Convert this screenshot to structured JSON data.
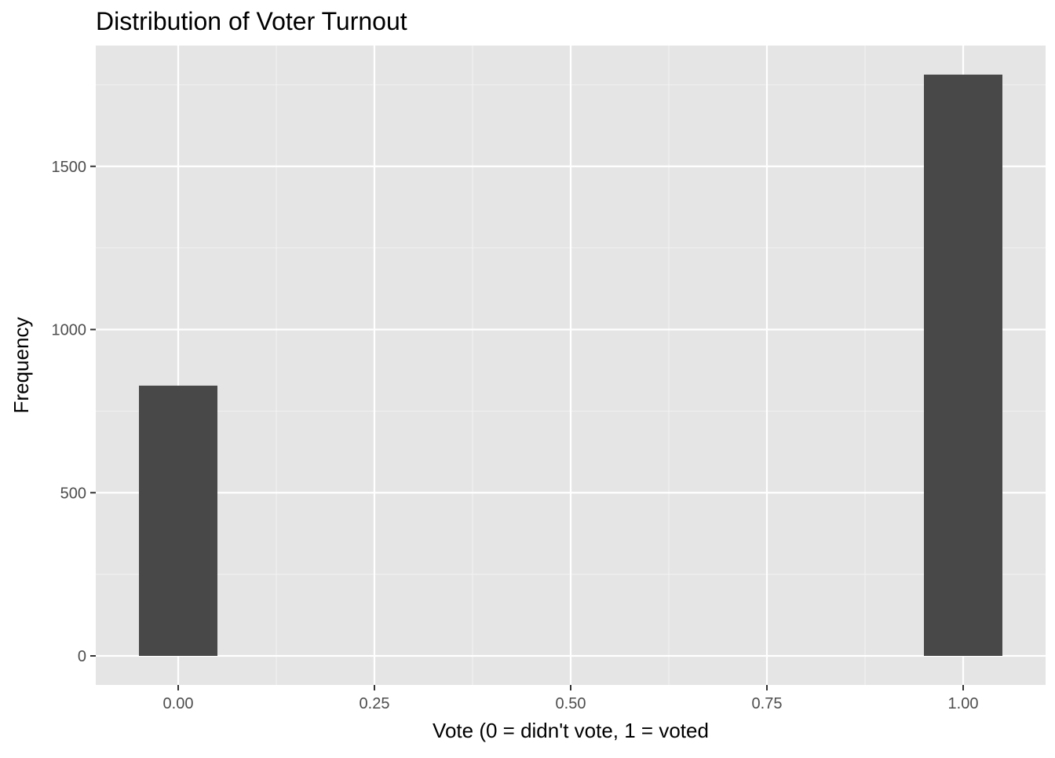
{
  "chart_data": {
    "type": "bar",
    "subtype": "histogram",
    "title": "Distribution of Voter Turnout",
    "xlabel": "Vote (0 = didn't vote, 1 = voted",
    "ylabel": "Frequency",
    "bars": [
      {
        "x_center": 0.0,
        "width": 0.1,
        "value": 828
      },
      {
        "x_center": 1.0,
        "width": 0.1,
        "value": 1781
      }
    ],
    "xlim": [
      -0.105,
      1.105
    ],
    "ylim": [
      -89.05,
      1870.05
    ],
    "x_ticks": [
      0.0,
      0.25,
      0.5,
      0.75,
      1.0
    ],
    "x_tick_labels": [
      "0.00",
      "0.25",
      "0.50",
      "0.75",
      "1.00"
    ],
    "x_minor_ticks": [
      0.125,
      0.375,
      0.625,
      0.875
    ],
    "y_ticks": [
      0,
      500,
      1000,
      1500
    ],
    "y_tick_labels": [
      "0",
      "500",
      "1000",
      "1500"
    ],
    "y_minor_ticks": [
      250,
      750,
      1250,
      1750
    ],
    "grid": true,
    "legend": "none",
    "colors": {
      "panel_background": "#e5e5e5",
      "grid_major": "#ffffff",
      "grid_minor": "#f2f2f2",
      "bar_fill": "#484848",
      "axis_text": "#4d4d4d",
      "axis_title": "#000000",
      "tick_mark": "#333333"
    }
  }
}
